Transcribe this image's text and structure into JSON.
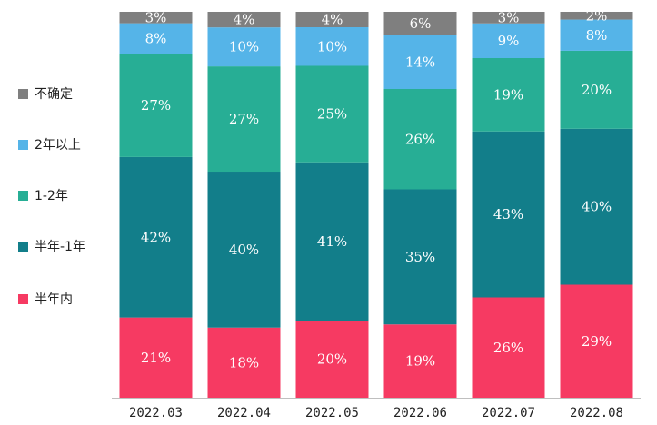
{
  "chart_data": {
    "type": "bar",
    "stacked": true,
    "normalized": true,
    "categories": [
      "2022.03",
      "2022.04",
      "2022.05",
      "2022.06",
      "2022.07",
      "2022.08"
    ],
    "series": [
      {
        "name": "半年内",
        "color": "#F63A62",
        "values": [
          21,
          18,
          20,
          19,
          26,
          29
        ]
      },
      {
        "name": "半年-1年",
        "color": "#127E8A",
        "values": [
          42,
          40,
          41,
          35,
          43,
          40
        ]
      },
      {
        "name": "1-2年",
        "color": "#27AE95",
        "values": [
          27,
          27,
          25,
          26,
          19,
          20
        ]
      },
      {
        "name": "2年以上",
        "color": "#55B4E8",
        "values": [
          8,
          10,
          10,
          14,
          9,
          8
        ]
      },
      {
        "name": "不确定",
        "color": "#7F7F7F",
        "values": [
          3,
          4,
          4,
          6,
          3,
          2
        ]
      }
    ],
    "value_suffix": "%",
    "legend_position": "left",
    "ylim": [
      0,
      100
    ],
    "grid": false
  }
}
